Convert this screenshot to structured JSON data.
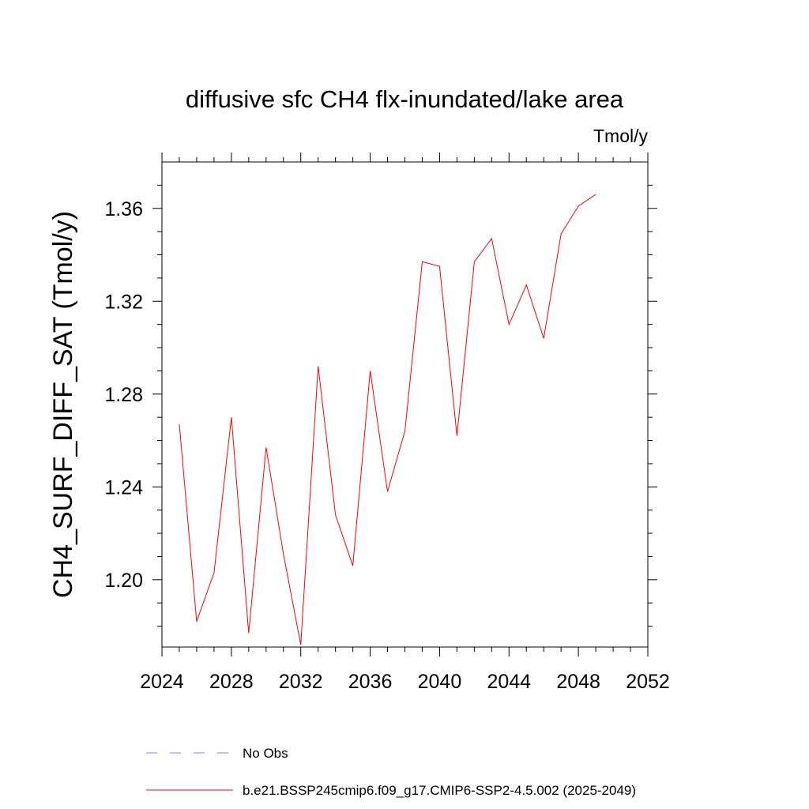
{
  "chart_data": {
    "type": "line",
    "title": "diffusive sfc CH4 flx-inundated/lake area",
    "units": "Tmol/y",
    "ylabel": "CH4_SURF_DIFF_SAT  (Tmol/y)",
    "xlabel": "",
    "xlim": [
      2024,
      2052
    ],
    "ylim": [
      1.171,
      1.38
    ],
    "x_ticks": [
      2024,
      2028,
      2032,
      2036,
      2040,
      2044,
      2048,
      2052
    ],
    "x_tick_labels": [
      "2024",
      "2028",
      "2032",
      "2036",
      "2040",
      "2044",
      "2048",
      "2052"
    ],
    "y_ticks": [
      1.2,
      1.24,
      1.28,
      1.32,
      1.36
    ],
    "y_tick_labels": [
      "1.20",
      "1.24",
      "1.28",
      "1.32",
      "1.36"
    ],
    "grid": false,
    "legend_position": "bottom",
    "series": [
      {
        "name": "b.e21.BSSP245cmip6.f09_g17.CMIP6-SSP2-4.5.002 (2025-2049)",
        "color": "#ff0000",
        "style": "solid",
        "x": [
          2025,
          2026,
          2027,
          2028,
          2029,
          2030,
          2031,
          2032,
          2033,
          2034,
          2035,
          2036,
          2037,
          2038,
          2039,
          2040,
          2041,
          2042,
          2043,
          2044,
          2045,
          2046,
          2047,
          2048,
          2049
        ],
        "values": [
          1.267,
          1.182,
          1.203,
          1.27,
          1.177,
          1.257,
          1.211,
          1.172,
          1.292,
          1.228,
          1.206,
          1.29,
          1.238,
          1.264,
          1.337,
          1.335,
          1.262,
          1.337,
          1.347,
          1.31,
          1.327,
          1.304,
          1.349,
          1.361,
          1.366
        ]
      },
      {
        "name": "No Obs",
        "color": "#8080ff",
        "style": "dashed",
        "x": [],
        "values": []
      }
    ]
  }
}
